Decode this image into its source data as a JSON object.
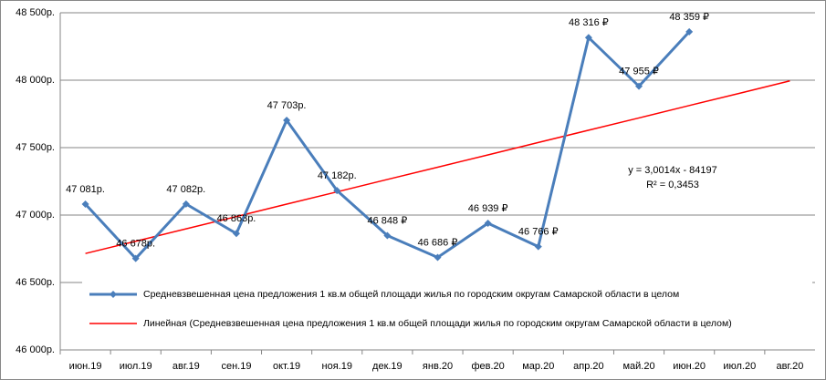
{
  "chart_data": {
    "type": "line",
    "categories": [
      "июн.19",
      "июл.19",
      "авг.19",
      "сен.19",
      "окт.19",
      "ноя.19",
      "дек.19",
      "янв.20",
      "фев.20",
      "мар.20",
      "апр.20",
      "май.20",
      "июн.20",
      "июл.20",
      "авг.20"
    ],
    "series": [
      {
        "name": "Средневзвешенная  цена предложения  1 кв.м общей площади жилья по городским округам Самарской области в целом",
        "color": "#4a7ebb",
        "values": [
          47081,
          46678,
          47082,
          46863,
          47703,
          47182,
          46848,
          46686,
          46939,
          46766,
          48316,
          47955,
          48359,
          null,
          null
        ],
        "value_labels": [
          "47 081р.",
          "46 678р.",
          "47 082р.",
          "46 863р.",
          "47 703р.",
          "47 182р.",
          "46 848 ₽",
          "46 686 ₽",
          "46 939 ₽",
          "46 766 ₽",
          "48 316 ₽",
          "47 955 ₽",
          "48 359 ₽",
          null,
          null
        ]
      },
      {
        "name": "Линейная (Средневзвешенная  цена предложения  1 кв.м общей площади жилья по городским округам Самарской области в целом)",
        "color": "#ff0000",
        "values": [
          46715,
          46806,
          46898,
          46989,
          47081,
          47172,
          47264,
          47355,
          47446,
          47538,
          47629,
          47720,
          47812,
          47903,
          47995
        ]
      }
    ],
    "ylim": [
      46000,
      48500
    ],
    "yticks": [
      {
        "value": 46000,
        "label": "46 000р."
      },
      {
        "value": 46500,
        "label": "46 500р."
      },
      {
        "value": 47000,
        "label": "47 000р."
      },
      {
        "value": 47500,
        "label": "47 500р."
      },
      {
        "value": 48000,
        "label": "48 000р."
      },
      {
        "value": 48500,
        "label": "48 500р."
      }
    ],
    "grid": true,
    "legend": "bottom-left",
    "annotations": [
      "y = 3,0014x - 84197",
      "R² = 0,3453"
    ]
  }
}
